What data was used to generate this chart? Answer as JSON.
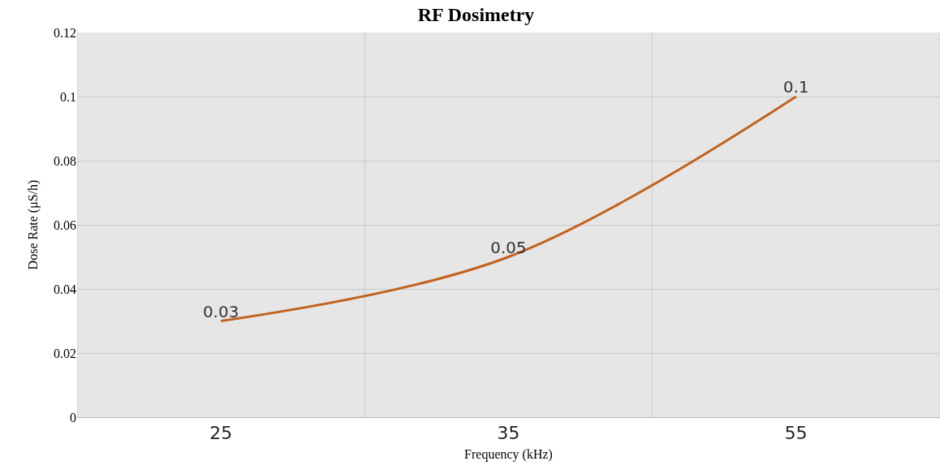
{
  "chart_data": {
    "type": "line",
    "title": "RF Dosimetry",
    "xlabel": "Frequency (kHz)",
    "ylabel": "Dose Rate (μS/h)",
    "categories": [
      "25",
      "35",
      "55"
    ],
    "series": [
      {
        "color": "#c2621c",
        "values": [
          0.03,
          0.05,
          0.1
        ]
      }
    ],
    "ylim": [
      0,
      0.12
    ],
    "yticks": [
      0,
      0.02,
      0.04,
      0.06,
      0.08,
      0.1,
      0.12
    ],
    "grid": true,
    "data_labels": true,
    "marker": "none",
    "line_style": "solid"
  }
}
